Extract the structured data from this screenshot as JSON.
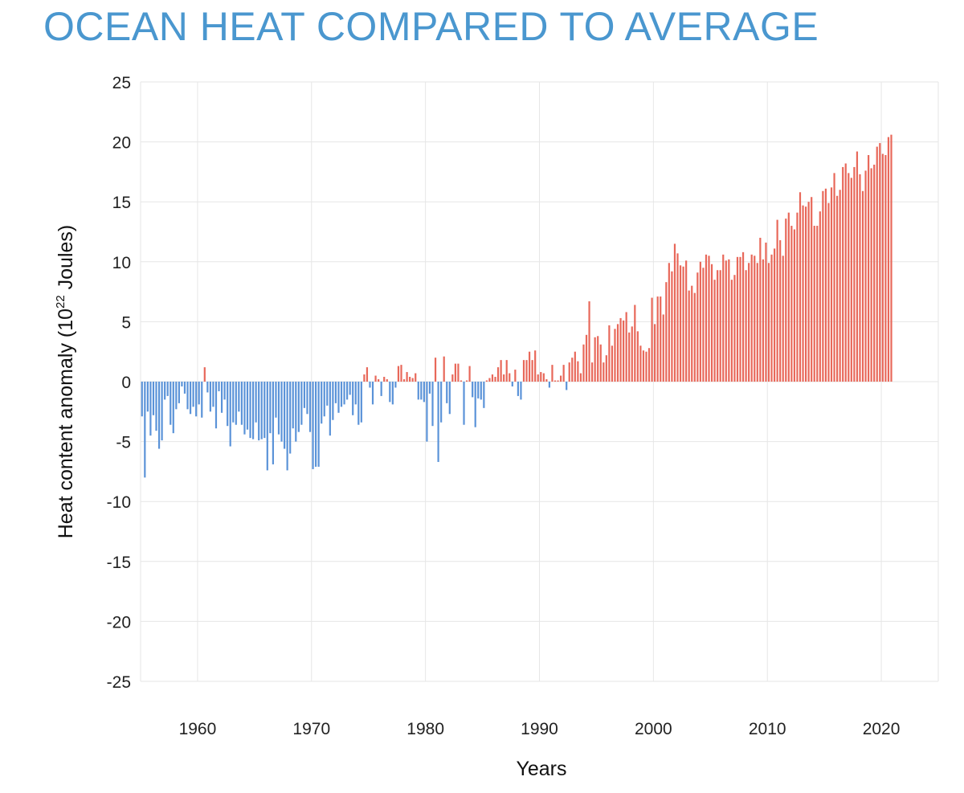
{
  "title": "OCEAN HEAT COMPARED TO AVERAGE",
  "chart_data": {
    "type": "bar",
    "xlabel": "Years",
    "ylabel": "Heat content anomaly (10",
    "ylabel_superscript": "22",
    "ylabel_suffix": " Joules)",
    "xlim": [
      1955,
      2025
    ],
    "ylim": [
      -25,
      25
    ],
    "x_ticks": [
      1960,
      1970,
      1980,
      1990,
      2000,
      2010,
      2020
    ],
    "y_ticks": [
      25,
      20,
      15,
      10,
      5,
      0,
      -5,
      -10,
      -15,
      -20,
      -25
    ],
    "grid": true,
    "bars_per_year": 4,
    "colors": {
      "positive": "#e8685a",
      "negative": "#5b93d8",
      "grid": "#e6e6e6"
    },
    "series": [
      {
        "start_year": 1955,
        "values": [
          -2.9,
          -8.0,
          -2.5,
          -4.5,
          -2.8,
          -4.1,
          -5.6,
          -4.9,
          -1.5,
          -1.2,
          -3.6,
          -4.3,
          -2.3,
          -1.8,
          -0.4,
          -1.0,
          -2.3,
          -2.7,
          -2.1,
          -2.9,
          -1.9,
          -3.0,
          1.2,
          -0.9,
          -2.5,
          -2.1,
          -3.9,
          -0.8,
          -2.6,
          -1.5,
          -3.7,
          -5.4,
          -3.4,
          -3.6,
          -2.5,
          -3.6,
          -4.4,
          -4.0,
          -4.7,
          -4.8,
          -3.4,
          -4.9,
          -4.8,
          -4.7,
          -7.4,
          -4.3,
          -6.9,
          -3.0,
          -4.4,
          -5.0,
          -5.6,
          -7.4,
          -6.0,
          -3.9,
          -5.0,
          -4.2,
          -3.6,
          -2.2,
          -2.7,
          -4.2,
          -7.3,
          -7.1,
          -7.1,
          -3.5,
          -2.9,
          -2.0,
          -4.5,
          -3.2,
          -1.8,
          -2.6,
          -2.1,
          -1.9,
          -1.5,
          -1.1,
          -2.8,
          -1.9,
          -3.6,
          -3.4,
          0.6,
          1.2,
          -0.5,
          -1.9,
          0.5,
          0.2,
          -1.2,
          0.4,
          0.2,
          -1.7,
          -1.9,
          -0.5,
          1.3,
          1.4,
          0.2,
          0.8,
          0.4,
          0.3,
          0.7,
          -1.5,
          -1.5,
          -1.7,
          -5.0,
          -1.0,
          -3.7,
          2.0,
          -6.7,
          -3.4,
          2.1,
          -1.8,
          -2.7,
          0.6,
          1.5,
          1.5,
          0.1,
          -3.6,
          0.1,
          1.3,
          -1.3,
          -3.8,
          -1.4,
          -1.5,
          -2.2,
          0.1,
          0.3,
          0.6,
          0.4,
          1.2,
          1.8,
          0.6,
          1.8,
          0.7,
          -0.4,
          1.0,
          -1.2,
          -1.5,
          1.8,
          1.8,
          2.5,
          1.8,
          2.6,
          0.6,
          0.8,
          0.7,
          0.2,
          -0.5,
          1.4,
          0.1,
          0.1,
          0.5,
          1.4,
          -0.7,
          1.6,
          2.0,
          2.5,
          1.7,
          0.7,
          3.1,
          3.9,
          6.7,
          1.6,
          3.7,
          3.8,
          3.1,
          1.6,
          2.2,
          4.7,
          3.0,
          4.4,
          4.8,
          5.3,
          5.1,
          5.8,
          4.1,
          4.6,
          6.4,
          4.2,
          3.0,
          2.6,
          2.5,
          2.8,
          7.0,
          4.8,
          7.1,
          7.1,
          5.6,
          8.3,
          9.9,
          9.2,
          11.5,
          10.7,
          9.7,
          9.6,
          10.1,
          7.6,
          8.0,
          7.4,
          9.1,
          10.0,
          9.5,
          10.6,
          10.5,
          9.8,
          8.5,
          9.3,
          9.3,
          10.6,
          10.1,
          10.2,
          8.5,
          8.9,
          10.4,
          10.4,
          10.8,
          9.3,
          9.9,
          10.6,
          10.5,
          9.9,
          12.0,
          10.2,
          11.6,
          9.9,
          10.6,
          11.1,
          13.5,
          11.8,
          10.5,
          13.6,
          14.1,
          13.0,
          12.7,
          14.1,
          15.8,
          14.7,
          14.6,
          15.0,
          15.4,
          13.0,
          13.0,
          14.2,
          15.9,
          16.1,
          14.9,
          16.2,
          17.4,
          15.5,
          16.0,
          17.9,
          18.2,
          17.4,
          17.0,
          17.9,
          19.2,
          17.3,
          15.9,
          17.6,
          18.9,
          17.8,
          18.1,
          19.6,
          19.9,
          19.0,
          18.9,
          20.4,
          20.6
        ]
      }
    ]
  }
}
